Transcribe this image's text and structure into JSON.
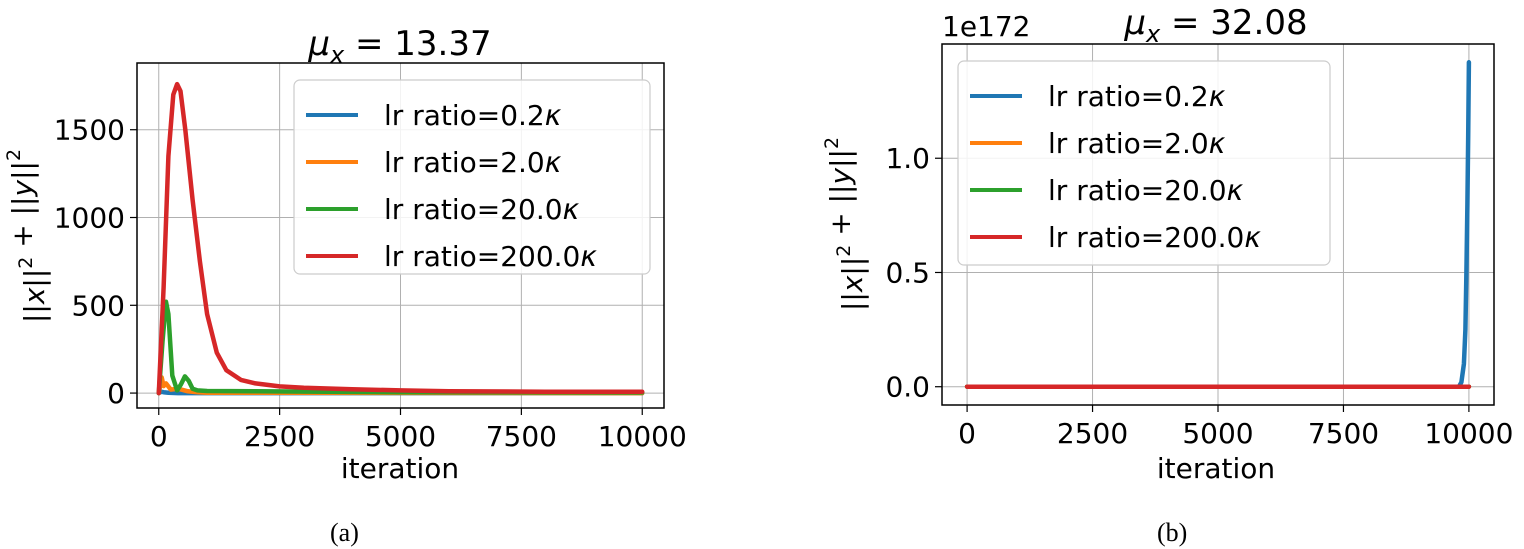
{
  "chart_data": [
    {
      "id": "a",
      "type": "line",
      "title": "μx = 13.37",
      "title_parts": {
        "symbol": "μ",
        "subscript": "x",
        "rest": " = 13.37"
      },
      "xlabel": "iteration",
      "ylabel": "||x||² + ||y||²",
      "xlim": [
        -450,
        10450
      ],
      "ylim": [
        -85,
        1880
      ],
      "xticks": [
        0,
        2500,
        5000,
        7500,
        10000
      ],
      "xtick_labels": [
        "0",
        "2500",
        "5000",
        "7500",
        "10000"
      ],
      "yticks": [
        0,
        500,
        1000,
        1500
      ],
      "ytick_labels": [
        "0",
        "500",
        "1000",
        "1500"
      ],
      "grid": true,
      "legend_position": "upper right",
      "caption": "(a)",
      "series": [
        {
          "name": "lr ratio=0.2κ",
          "color": "#1f77b4",
          "x": [
            0,
            50,
            100,
            200,
            400,
            1000,
            10000
          ],
          "y": [
            0,
            8,
            5,
            2,
            0,
            0,
            0
          ]
        },
        {
          "name": "lr ratio=2.0κ",
          "color": "#ff7f0e",
          "x": [
            0,
            60,
            100,
            150,
            250,
            400,
            600,
            800,
            1000,
            10000
          ],
          "y": [
            0,
            90,
            40,
            55,
            20,
            25,
            10,
            5,
            2,
            0
          ]
        },
        {
          "name": "lr ratio=20.0κ",
          "color": "#2ca02c",
          "x": [
            0,
            80,
            150,
            200,
            280,
            380,
            460,
            540,
            620,
            700,
            800,
            1000,
            2000,
            5000,
            10000
          ],
          "y": [
            0,
            300,
            520,
            450,
            100,
            15,
            50,
            95,
            70,
            25,
            15,
            12,
            10,
            5,
            3
          ]
        },
        {
          "name": "lr ratio=200.0κ",
          "color": "#d62728",
          "x": [
            0,
            100,
            200,
            300,
            380,
            450,
            550,
            700,
            850,
            1000,
            1200,
            1400,
            1700,
            2000,
            2500,
            3000,
            4000,
            5000,
            6000,
            8000,
            10000
          ],
          "y": [
            0,
            600,
            1350,
            1700,
            1760,
            1720,
            1500,
            1100,
            750,
            450,
            230,
            130,
            75,
            55,
            38,
            30,
            22,
            15,
            10,
            8,
            8
          ]
        }
      ]
    },
    {
      "id": "b",
      "type": "line",
      "title": "μx = 32.08",
      "title_parts": {
        "symbol": "μ",
        "subscript": "x",
        "rest": " = 32.08"
      },
      "offset_label": "1e172",
      "xlabel": "iteration",
      "ylabel": "||x||² + ||y||²",
      "xlim": [
        -500,
        10500
      ],
      "ylim": [
        -0.08,
        1.5
      ],
      "xticks": [
        0,
        2500,
        5000,
        7500,
        10000
      ],
      "xtick_labels": [
        "0",
        "2500",
        "5000",
        "7500",
        "10000"
      ],
      "yticks": [
        0.0,
        0.5,
        1.0
      ],
      "ytick_labels": [
        "0.0",
        "0.5",
        "1.0"
      ],
      "y_scale_factor": "1e172",
      "grid": true,
      "legend_position": "upper left",
      "caption": "(b)",
      "series": [
        {
          "name": "lr ratio=0.2κ",
          "color": "#1f77b4",
          "x": [
            0,
            9800,
            9850,
            9900,
            9930,
            9950,
            9970,
            9985,
            10000
          ],
          "y": [
            0,
            0,
            0.02,
            0.1,
            0.25,
            0.5,
            0.8,
            1.1,
            1.42
          ]
        },
        {
          "name": "lr ratio=2.0κ",
          "color": "#ff7f0e",
          "x": [
            0,
            10000
          ],
          "y": [
            0,
            0
          ]
        },
        {
          "name": "lr ratio=20.0κ",
          "color": "#2ca02c",
          "x": [
            0,
            10000
          ],
          "y": [
            0,
            0
          ]
        },
        {
          "name": "lr ratio=200.0κ",
          "color": "#d62728",
          "x": [
            0,
            10000
          ],
          "y": [
            0,
            0
          ]
        }
      ]
    }
  ]
}
